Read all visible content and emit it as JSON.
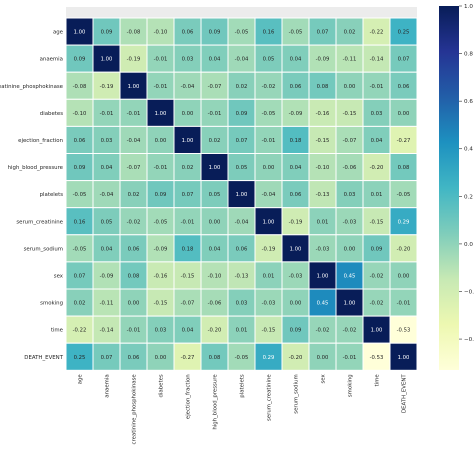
{
  "chart_data": {
    "type": "heatmap",
    "variables": [
      "age",
      "anaemia",
      "creatinine_phosphokinase",
      "diabetes",
      "ejection_fraction",
      "high_blood_pressure",
      "platelets",
      "serum_creatinine",
      "serum_sodium",
      "sex",
      "smoking",
      "time",
      "DEATH_EVENT"
    ],
    "matrix": [
      [
        1.0,
        0.09,
        -0.08,
        -0.1,
        0.06,
        0.09,
        -0.05,
        0.16,
        -0.05,
        0.07,
        0.02,
        -0.22,
        0.25
      ],
      [
        0.09,
        1.0,
        -0.19,
        -0.01,
        0.03,
        0.04,
        -0.04,
        0.05,
        0.04,
        -0.09,
        -0.11,
        -0.14,
        0.07
      ],
      [
        -0.08,
        -0.19,
        1.0,
        -0.01,
        -0.04,
        -0.07,
        0.02,
        -0.02,
        0.06,
        0.08,
        0.0,
        -0.01,
        0.06
      ],
      [
        -0.1,
        -0.01,
        -0.01,
        1.0,
        -0.0,
        -0.01,
        0.09,
        -0.05,
        -0.09,
        -0.16,
        -0.15,
        0.03,
        -0.0
      ],
      [
        0.06,
        0.03,
        -0.04,
        -0.0,
        1.0,
        0.02,
        0.07,
        -0.01,
        0.18,
        -0.15,
        -0.07,
        0.04,
        -0.27
      ],
      [
        0.09,
        0.04,
        -0.07,
        -0.01,
        0.02,
        1.0,
        0.05,
        -0.0,
        0.04,
        -0.1,
        -0.06,
        -0.2,
        0.08
      ],
      [
        -0.05,
        -0.04,
        0.02,
        0.09,
        0.07,
        0.05,
        1.0,
        -0.04,
        0.06,
        -0.13,
        0.03,
        0.01,
        -0.05
      ],
      [
        0.16,
        0.05,
        -0.02,
        -0.05,
        -0.01,
        -0.0,
        -0.04,
        1.0,
        -0.19,
        0.01,
        -0.03,
        -0.15,
        0.29
      ],
      [
        -0.05,
        0.04,
        0.06,
        -0.09,
        0.18,
        0.04,
        0.06,
        -0.19,
        1.0,
        -0.03,
        0.0,
        0.09,
        -0.2
      ],
      [
        0.07,
        -0.09,
        0.08,
        -0.16,
        -0.15,
        -0.1,
        -0.13,
        0.01,
        -0.03,
        1.0,
        0.45,
        -0.02,
        -0.0
      ],
      [
        0.02,
        -0.11,
        0.0,
        -0.15,
        -0.07,
        -0.06,
        0.03,
        -0.03,
        0.0,
        0.45,
        1.0,
        -0.02,
        -0.01
      ],
      [
        -0.22,
        -0.14,
        -0.01,
        0.03,
        0.04,
        -0.2,
        0.01,
        -0.15,
        0.09,
        -0.02,
        -0.02,
        1.0,
        -0.53
      ],
      [
        0.25,
        0.07,
        0.06,
        -0.0,
        -0.27,
        0.08,
        -0.05,
        0.29,
        -0.2,
        -0.0,
        -0.01,
        -0.53,
        1.0
      ]
    ],
    "colormap": "YlGnBu",
    "value_range": [
      -0.53,
      1.0
    ],
    "colorbar_ticks": [
      1.0,
      0.8,
      0.6,
      0.4,
      0.2,
      0.0,
      -0.2,
      -0.4
    ],
    "annotations": true,
    "cell_gridlines": "white",
    "colorbar_position": "right"
  }
}
